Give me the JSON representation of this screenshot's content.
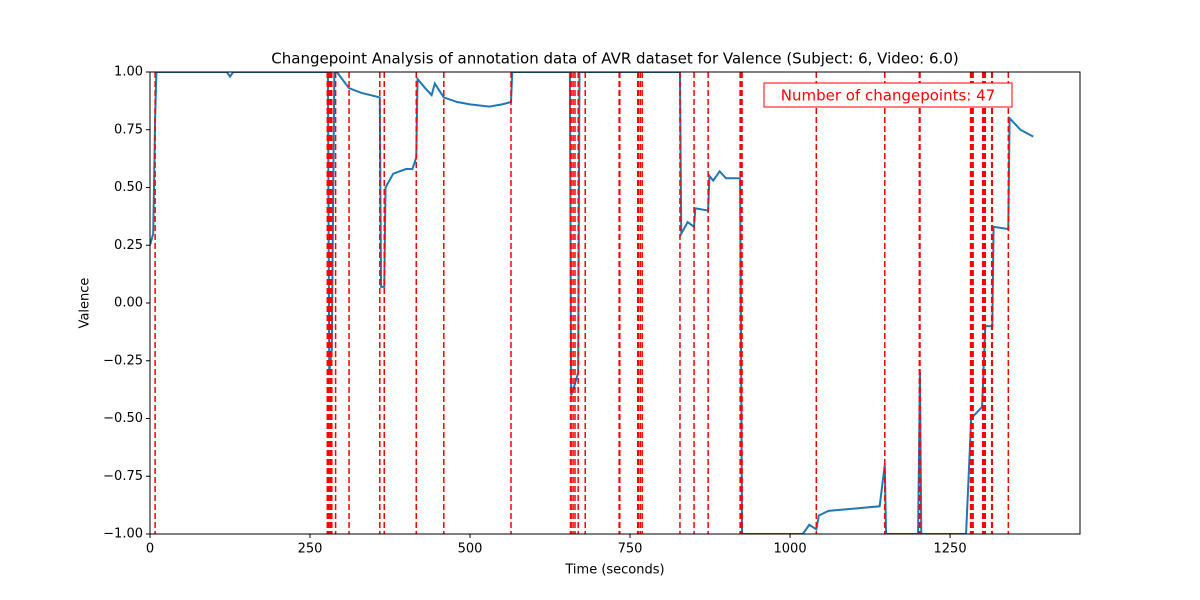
{
  "chart_data": {
    "type": "line",
    "title": "Changepoint Analysis of annotation data of AVR dataset for Valence (Subject: 6, Video: 6.0)",
    "xlabel": "Time (seconds)",
    "ylabel": "Valence",
    "xlim": [
      0,
      1453
    ],
    "ylim": [
      -1,
      1
    ],
    "xticks": [
      0,
      250,
      500,
      750,
      1000,
      1250
    ],
    "yticks": [
      {
        "value": -1,
        "label": "−1.00"
      },
      {
        "value": -0.75,
        "label": "−0.75"
      },
      {
        "value": -0.5,
        "label": "−0.50"
      },
      {
        "value": -0.25,
        "label": "−0.25"
      },
      {
        "value": 0,
        "label": "0.00"
      },
      {
        "value": 0.25,
        "label": "0.25"
      },
      {
        "value": 0.5,
        "label": "0.50"
      },
      {
        "value": 0.75,
        "label": "0.75"
      },
      {
        "value": 1,
        "label": "1.00"
      }
    ],
    "color": "#1f77b4",
    "x": [
      0,
      5,
      8,
      10,
      120,
      125,
      130,
      278,
      280,
      284,
      288,
      292,
      300,
      311,
      330,
      359,
      361,
      366,
      368,
      380,
      400,
      410,
      416,
      418,
      430,
      440,
      445,
      459,
      480,
      500,
      530,
      550,
      564,
      566,
      656,
      658,
      664,
      669,
      671,
      828,
      830,
      840,
      850,
      852,
      872,
      874,
      880,
      890,
      900,
      922,
      925,
      1020,
      1030,
      1041,
      1045,
      1060,
      1100,
      1140,
      1148,
      1150,
      1200,
      1203,
      1205,
      1275,
      1283,
      1300,
      1305,
      1316,
      1318,
      1341,
      1343,
      1360,
      1380
    ],
    "values": [
      0.25,
      0.3,
      0.8,
      1.0,
      1.0,
      0.98,
      1.0,
      1.0,
      -0.3,
      -0.2,
      1.0,
      1.0,
      0.97,
      0.93,
      0.91,
      0.89,
      0.07,
      0.07,
      0.5,
      0.56,
      0.58,
      0.58,
      0.63,
      0.97,
      0.93,
      0.9,
      0.95,
      0.89,
      0.87,
      0.86,
      0.85,
      0.86,
      0.87,
      1.0,
      1.0,
      -0.4,
      -0.35,
      -0.3,
      1.0,
      1.0,
      0.3,
      0.35,
      0.33,
      0.41,
      0.4,
      0.55,
      0.53,
      0.57,
      0.54,
      0.54,
      -1.0,
      -1.0,
      -0.96,
      -0.98,
      -0.92,
      -0.9,
      -0.89,
      -0.88,
      -0.7,
      -1.0,
      -1.0,
      -0.3,
      -1.0,
      -1.0,
      -0.5,
      -0.45,
      -0.1,
      -0.1,
      0.33,
      0.32,
      0.8,
      0.75,
      0.72
    ],
    "changepoints": [
      8,
      277,
      278,
      279,
      281,
      282,
      284,
      290,
      311,
      359,
      366,
      416,
      459,
      564,
      657,
      658,
      661,
      664,
      669,
      680,
      733,
      734,
      762,
      763,
      766,
      769,
      828,
      850,
      872,
      922,
      923,
      925,
      1041,
      1148,
      1202,
      1203,
      1282,
      1283,
      1284,
      1286,
      1301,
      1302,
      1303,
      1305,
      1315,
      1316,
      1341
    ],
    "changepoint_color": "#ff0000",
    "annotation": "Number of changepoints: 47"
  }
}
